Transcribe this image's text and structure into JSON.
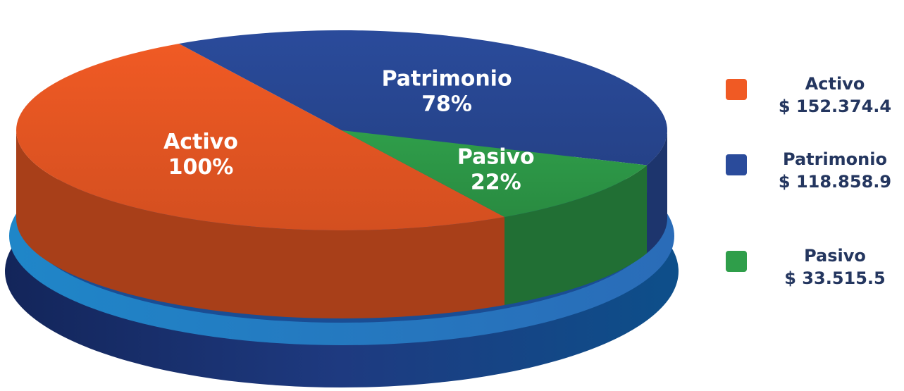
{
  "chart_data": {
    "type": "pie",
    "categories": [
      "Activo",
      "Patrimonio",
      "Pasivo"
    ],
    "values": [
      100,
      78,
      22
    ],
    "value_labels": [
      "100%",
      "78%",
      "22%"
    ],
    "legend_values": [
      "$ 152.374.4",
      "$ 118.858.9",
      "$ 33.515.5"
    ],
    "colors": [
      "#f05a24",
      "#2a4b9b",
      "#2f9e4a"
    ],
    "legend": "right"
  }
}
